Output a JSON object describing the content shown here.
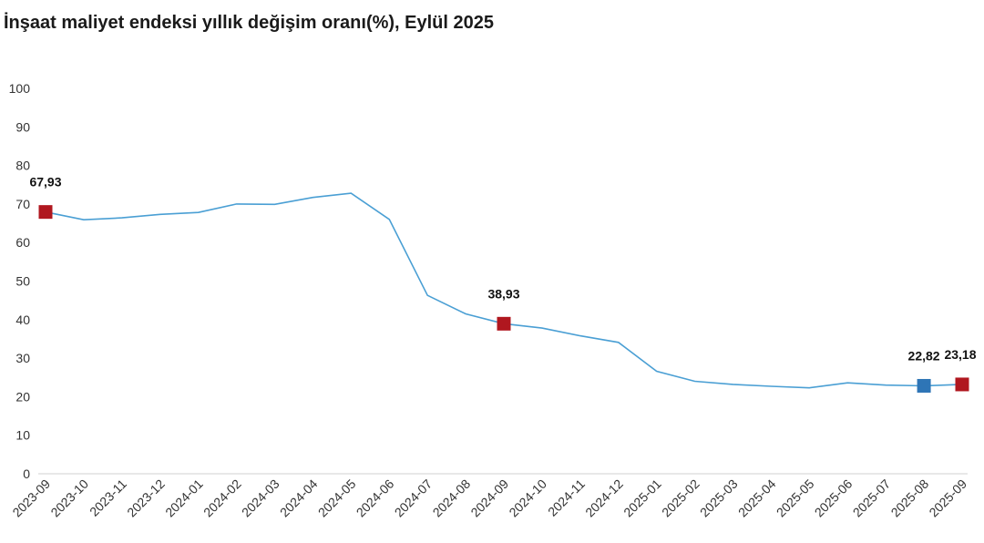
{
  "chart_data": {
    "type": "line",
    "title": "İnşaat maliyet endeksi yıllık değişim oranı(%), Eylül 2025",
    "xlabel": "",
    "ylabel": "",
    "ylim": [
      0,
      100
    ],
    "yticks": [
      "0",
      "10",
      "20",
      "30",
      "40",
      "50",
      "60",
      "70",
      "80",
      "90",
      "100"
    ],
    "grid": false,
    "categories": [
      "2023-09",
      "2023-10",
      "2023-11",
      "2023-12",
      "2024-01",
      "2024-02",
      "2024-03",
      "2024-04",
      "2024-05",
      "2024-06",
      "2024-07",
      "2024-08",
      "2024-09",
      "2024-10",
      "2024-11",
      "2024-12",
      "2025-01",
      "2025-02",
      "2025-03",
      "2025-04",
      "2025-05",
      "2025-06",
      "2025-07",
      "2025-08",
      "2025-09"
    ],
    "series": [
      {
        "values": [
          67.93,
          65.9,
          66.4,
          67.3,
          67.8,
          70.0,
          69.9,
          71.7,
          72.8,
          66.0,
          46.3,
          41.5,
          38.93,
          37.8,
          35.8,
          34.1,
          26.6,
          24.0,
          23.2,
          22.7,
          22.3,
          23.6,
          23.0,
          22.82,
          23.18
        ]
      }
    ],
    "highlighted_points": [
      {
        "index": 0,
        "label": "67,93",
        "color": "#b0171f"
      },
      {
        "index": 12,
        "label": "38,93",
        "color": "#b0171f"
      },
      {
        "index": 23,
        "label": "22,82",
        "color": "#2e75b6"
      },
      {
        "index": 24,
        "label": "23,18",
        "color": "#b0171f"
      }
    ],
    "line_color": "#4a9fd4",
    "axis_color": "#d0d0d0"
  }
}
